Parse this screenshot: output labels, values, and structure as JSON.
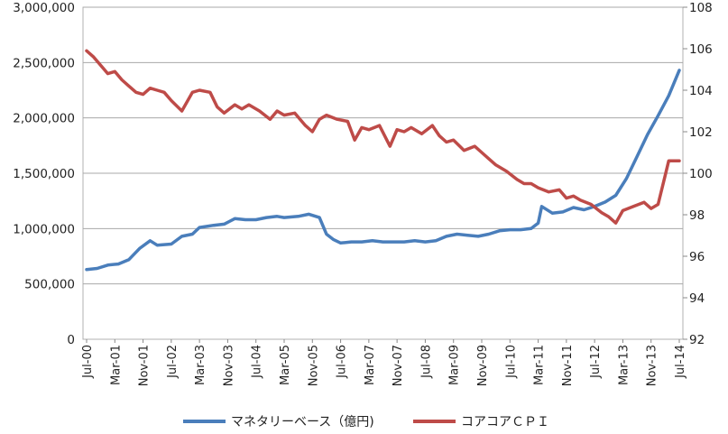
{
  "chart_data": {
    "type": "line",
    "title": "",
    "xlabel": "",
    "y_left": {
      "ylim": [
        0,
        3000000
      ],
      "ticks": [
        "0",
        "500,000",
        "1,000,000",
        "1,500,000",
        "2,000,000",
        "2,500,000",
        "3,000,000"
      ]
    },
    "y_right": {
      "ylim": [
        92,
        108
      ],
      "ticks": [
        "92",
        "94",
        "96",
        "98",
        "100",
        "102",
        "104",
        "106",
        "108"
      ]
    },
    "x_tick_labels": [
      "Jul-00",
      "Mar-01",
      "Nov-01",
      "Jul-02",
      "Mar-03",
      "Nov-03",
      "Jul-04",
      "Mar-05",
      "Nov-05",
      "Jul-06",
      "Mar-07",
      "Nov-07",
      "Jul-08",
      "Mar-09",
      "Nov-09",
      "Jul-10",
      "Mar-11",
      "Nov-11",
      "Jul-12",
      "Mar-13",
      "Nov-13",
      "Jul-14"
    ],
    "grid": true,
    "legend": "bottom",
    "series": [
      {
        "name": "マネタリーベース（億円)",
        "axis": "left",
        "color": "#4a7ebb",
        "x": [
          "2000-07",
          "2000-10",
          "2001-01",
          "2001-04",
          "2001-07",
          "2001-10",
          "2002-01",
          "2002-03",
          "2002-07",
          "2002-10",
          "2003-01",
          "2003-03",
          "2003-07",
          "2003-10",
          "2004-01",
          "2004-04",
          "2004-07",
          "2004-10",
          "2005-01",
          "2005-03",
          "2005-07",
          "2005-10",
          "2006-01",
          "2006-03",
          "2006-05",
          "2006-07",
          "2006-10",
          "2007-01",
          "2007-04",
          "2007-07",
          "2007-10",
          "2008-01",
          "2008-04",
          "2008-07",
          "2008-10",
          "2009-01",
          "2009-04",
          "2009-07",
          "2009-10",
          "2010-01",
          "2010-04",
          "2010-07",
          "2010-10",
          "2011-01",
          "2011-03",
          "2011-04",
          "2011-07",
          "2011-10",
          "2012-01",
          "2012-04",
          "2012-07",
          "2012-10",
          "2013-01",
          "2013-04",
          "2013-07",
          "2013-10",
          "2014-01",
          "2014-04",
          "2014-07"
        ],
        "values": [
          630000,
          640000,
          670000,
          680000,
          720000,
          820000,
          890000,
          850000,
          860000,
          930000,
          950000,
          1010000,
          1030000,
          1040000,
          1090000,
          1080000,
          1080000,
          1100000,
          1110000,
          1100000,
          1110000,
          1130000,
          1100000,
          950000,
          900000,
          870000,
          880000,
          880000,
          890000,
          880000,
          880000,
          880000,
          890000,
          880000,
          890000,
          930000,
          950000,
          940000,
          930000,
          950000,
          980000,
          990000,
          990000,
          1000000,
          1050000,
          1200000,
          1140000,
          1150000,
          1190000,
          1170000,
          1200000,
          1240000,
          1300000,
          1450000,
          1650000,
          1850000,
          2020000,
          2200000,
          2430000
        ]
      },
      {
        "name": "コアコアＣＰＩ",
        "axis": "right",
        "color": "#be4b48",
        "x": [
          "2000-07",
          "2000-09",
          "2000-11",
          "2001-01",
          "2001-03",
          "2001-05",
          "2001-07",
          "2001-09",
          "2001-11",
          "2002-01",
          "2002-03",
          "2002-05",
          "2002-07",
          "2002-10",
          "2003-01",
          "2003-03",
          "2003-06",
          "2003-08",
          "2003-10",
          "2004-01",
          "2004-03",
          "2004-05",
          "2004-08",
          "2004-11",
          "2005-01",
          "2005-03",
          "2005-06",
          "2005-09",
          "2005-11",
          "2006-01",
          "2006-03",
          "2006-06",
          "2006-09",
          "2006-11",
          "2007-01",
          "2007-03",
          "2007-06",
          "2007-09",
          "2007-11",
          "2008-01",
          "2008-03",
          "2008-06",
          "2008-09",
          "2008-11",
          "2009-01",
          "2009-03",
          "2009-06",
          "2009-09",
          "2009-11",
          "2010-01",
          "2010-03",
          "2010-06",
          "2010-09",
          "2010-11",
          "2011-01",
          "2011-03",
          "2011-06",
          "2011-09",
          "2011-11",
          "2012-01",
          "2012-03",
          "2012-06",
          "2012-09",
          "2012-11",
          "2013-01",
          "2013-03",
          "2013-06",
          "2013-09",
          "2013-11",
          "2014-01",
          "2014-03",
          "2014-04",
          "2014-07"
        ],
        "values": [
          105.9,
          105.6,
          105.2,
          104.8,
          104.9,
          104.5,
          104.2,
          103.9,
          103.8,
          104.1,
          104.0,
          103.9,
          103.5,
          103.0,
          103.9,
          104.0,
          103.9,
          103.2,
          102.9,
          103.3,
          103.1,
          103.3,
          103.0,
          102.6,
          103.0,
          102.8,
          102.9,
          102.3,
          102.0,
          102.6,
          102.8,
          102.6,
          102.5,
          101.6,
          102.2,
          102.1,
          102.3,
          101.3,
          102.1,
          102.0,
          102.2,
          101.9,
          102.3,
          101.8,
          101.5,
          101.6,
          101.1,
          101.3,
          101.0,
          100.7,
          100.4,
          100.1,
          99.7,
          99.5,
          99.5,
          99.3,
          99.1,
          99.2,
          98.8,
          98.9,
          98.7,
          98.5,
          98.1,
          97.9,
          97.6,
          98.2,
          98.4,
          98.6,
          98.3,
          98.5,
          99.9,
          100.6,
          100.6
        ]
      }
    ]
  }
}
